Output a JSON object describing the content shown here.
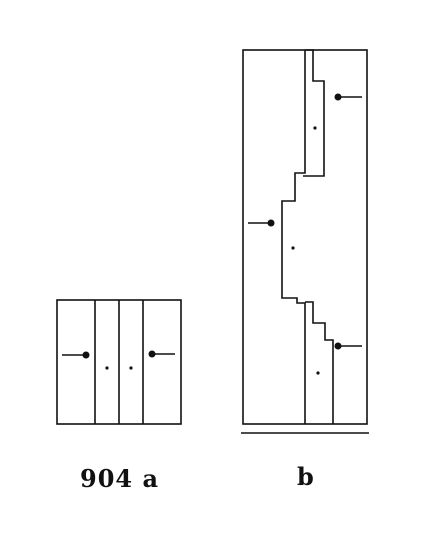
{
  "figure": {
    "label_a": "904 a",
    "label_b": "b",
    "ink_color": "#111111",
    "background_color": "#ffffff"
  }
}
